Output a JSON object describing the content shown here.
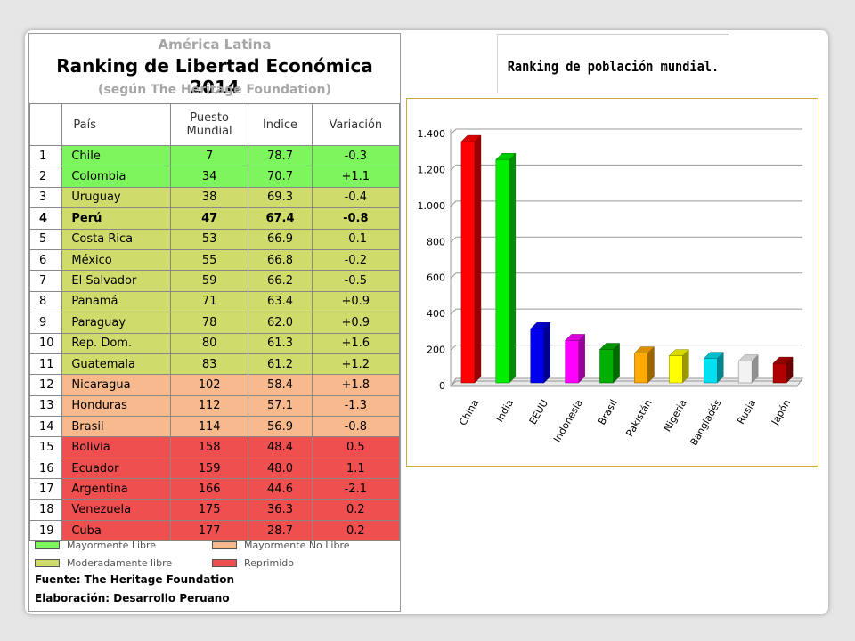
{
  "table": {
    "caption": "América Latina",
    "title": "Ranking de Libertad Económica 2014",
    "subtitle": "(según The Heritage Foundation)",
    "header": [
      "País",
      "Puesto Mundial",
      "Índice",
      "Variación"
    ],
    "rows": [
      {
        "cells": [
          "1",
          "Chile",
          "7",
          "78.7",
          "-0.3"
        ],
        "color": "#7df55c"
      },
      {
        "cells": [
          "2",
          "Colombia",
          "34",
          "70.7",
          "+1.1"
        ],
        "color": "#7df55c"
      },
      {
        "cells": [
          "3",
          "Uruguay",
          "38",
          "69.3",
          "-0.4"
        ],
        "color": "#cfdc6b"
      },
      {
        "cells": [
          "4",
          "Perú",
          "47",
          "67.4",
          "-0.8"
        ],
        "color": "#cfdc6b",
        "bold": true
      },
      {
        "cells": [
          "5",
          "Costa Rica",
          "53",
          "66.9",
          "-0.1"
        ],
        "color": "#cfdc6b"
      },
      {
        "cells": [
          "6",
          "México",
          "55",
          "66.8",
          "-0.2"
        ],
        "color": "#cfdc6b"
      },
      {
        "cells": [
          "7",
          "El Salvador",
          "59",
          "66.2",
          "-0.5"
        ],
        "color": "#cfdc6b"
      },
      {
        "cells": [
          "8",
          "Panamá",
          "71",
          "63.4",
          "+0.9"
        ],
        "color": "#cfdc6b"
      },
      {
        "cells": [
          "9",
          "Paraguay",
          "78",
          "62.0",
          "+0.9"
        ],
        "color": "#cfdc6b"
      },
      {
        "cells": [
          "10",
          "Rep. Dom.",
          "80",
          "61.3",
          "+1.6"
        ],
        "color": "#cfdc6b"
      },
      {
        "cells": [
          "11",
          "Guatemala",
          "83",
          "61.2",
          "+1.2"
        ],
        "color": "#cfdc6b"
      },
      {
        "cells": [
          "12",
          "Nicaragua",
          "102",
          "58.4",
          "+1.8"
        ],
        "color": "#f8b98d"
      },
      {
        "cells": [
          "13",
          "Honduras",
          "112",
          "57.1",
          "-1.3"
        ],
        "color": "#f8b98d"
      },
      {
        "cells": [
          "14",
          "Brasil",
          "114",
          "56.9",
          "-0.8"
        ],
        "color": "#f8b98d"
      },
      {
        "cells": [
          "15",
          "Bolivia",
          "158",
          "48.4",
          "0.5"
        ],
        "color": "#f04f4f"
      },
      {
        "cells": [
          "16",
          "Ecuador",
          "159",
          "48.0",
          "1.1"
        ],
        "color": "#f04f4f"
      },
      {
        "cells": [
          "17",
          "Argentina",
          "166",
          "44.6",
          "-2.1"
        ],
        "color": "#f04f4f"
      },
      {
        "cells": [
          "18",
          "Venezuela",
          "175",
          "36.3",
          "0.2"
        ],
        "color": "#f04f4f"
      },
      {
        "cells": [
          "19",
          "Cuba",
          "177",
          "28.7",
          "0.2"
        ],
        "color": "#f04f4f"
      }
    ],
    "legend": [
      {
        "label": "Mayormente Libre",
        "color": "#7df55c"
      },
      {
        "label": "Mayormente No Libre",
        "color": "#f8b98d"
      },
      {
        "label": "Moderadamente libre",
        "color": "#cfdc6b"
      },
      {
        "label": "Reprimido",
        "color": "#f04f4f"
      }
    ],
    "footer": [
      "Fuente: The Heritage Foundation",
      "Elaboración: Desarrollo Peruano"
    ]
  },
  "chart_data": {
    "type": "bar3d",
    "title": "Ranking de población mundial.",
    "categories": [
      "China",
      "India",
      "EEUU",
      "Indonesia",
      "Brasil",
      "Pakistán",
      "Nigeria",
      "Bangladés",
      "Rusia",
      "Japón"
    ],
    "values": [
      1360,
      1260,
      320,
      255,
      205,
      185,
      170,
      155,
      140,
      128
    ],
    "colors": [
      "#ff0000",
      "#00ee00",
      "#0000ee",
      "#ff00ff",
      "#00b000",
      "#ffaa00",
      "#ffff00",
      "#00e0f0",
      "#f2f2f2",
      "#b00000"
    ],
    "ylim": [
      0,
      1400
    ],
    "yticks": [
      0,
      200,
      400,
      600,
      800,
      {
        "value": 1000,
        "label": "1.000"
      },
      {
        "value": 1200,
        "label": "1.200"
      },
      {
        "value": 1400,
        "label": "1.400"
      }
    ],
    "grid": true
  }
}
